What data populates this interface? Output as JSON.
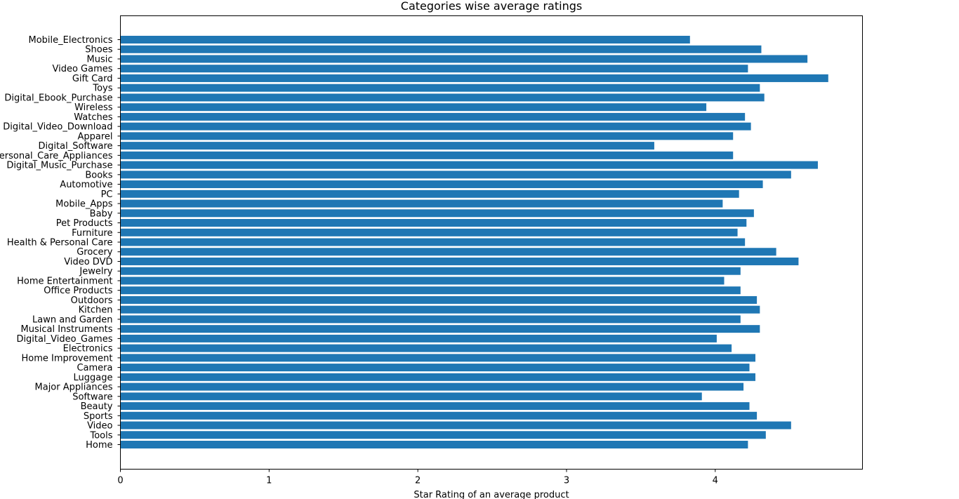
{
  "chart_data": {
    "type": "bar",
    "orientation": "horizontal",
    "title": "Categories wise average ratings",
    "xlabel": "Star Rating of an average product",
    "ylabel": "",
    "xlim": [
      0,
      4.99
    ],
    "xticks": [
      0,
      1,
      2,
      3,
      4
    ],
    "grid": false,
    "bar_color": "#1f77b4",
    "categories": [
      "Mobile_Electronics",
      "Shoes",
      "Music",
      "Video Games",
      "Gift Card",
      "Toys",
      "Digital_Ebook_Purchase",
      "Wireless",
      "Watches",
      "Digital_Video_Download",
      "Apparel",
      "Digital_Software",
      "Personal_Care_Appliances",
      "Digital_Music_Purchase",
      "Books",
      "Automotive",
      "PC",
      "Mobile_Apps",
      "Baby",
      "Pet Products",
      "Furniture",
      "Health & Personal Care",
      "Grocery",
      "Video DVD",
      "Jewelry",
      "Home Entertainment",
      "Office Products",
      "Outdoors",
      "Kitchen",
      "Lawn and Garden",
      "Musical Instruments",
      "Digital_Video_Games",
      "Electronics",
      "Home Improvement",
      "Camera",
      "Luggage",
      "Major Appliances",
      "Software",
      "Beauty",
      "Sports",
      "Video",
      "Tools",
      "Home"
    ],
    "values": [
      3.83,
      4.31,
      4.62,
      4.22,
      4.76,
      4.3,
      4.33,
      3.94,
      4.2,
      4.24,
      4.12,
      3.59,
      4.12,
      4.69,
      4.51,
      4.32,
      4.16,
      4.05,
      4.26,
      4.21,
      4.15,
      4.2,
      4.41,
      4.56,
      4.17,
      4.06,
      4.17,
      4.28,
      4.3,
      4.17,
      4.3,
      4.01,
      4.11,
      4.27,
      4.23,
      4.27,
      4.19,
      3.91,
      4.23,
      4.28,
      4.51,
      4.34,
      4.22
    ]
  }
}
